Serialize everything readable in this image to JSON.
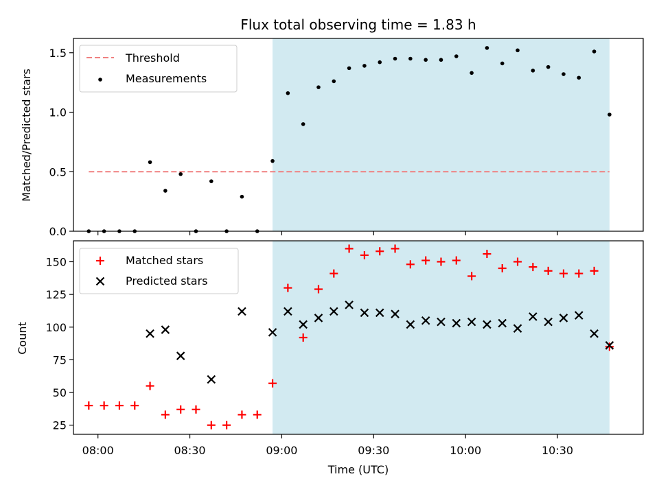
{
  "title": "Flux total observing time = 1.83 h",
  "xlabel": "Time (UTC)",
  "xticks": [
    {
      "t": 480,
      "label": "08:00"
    },
    {
      "t": 510,
      "label": "08:30"
    },
    {
      "t": 540,
      "label": "09:00"
    },
    {
      "t": 570,
      "label": "09:30"
    },
    {
      "t": 600,
      "label": "10:00"
    },
    {
      "t": 630,
      "label": "10:30"
    }
  ],
  "colors": {
    "threshold": "#f08080",
    "measurement": "#000000",
    "matched": "#ff0000",
    "predicted": "#000000",
    "shade": "#add8e6"
  },
  "chart_data": [
    {
      "type": "scatter",
      "ylabel": "Matched/Predicted stars",
      "xlim": [
        "07:52",
        "10:58"
      ],
      "ylim": [
        0,
        1.62
      ],
      "yticks": [
        {
          "v": 0,
          "label": "0.0"
        },
        {
          "v": 0.5,
          "label": "0.5"
        },
        {
          "v": 1.0,
          "label": "1.0"
        },
        {
          "v": 1.5,
          "label": "1.5"
        }
      ],
      "shaded_interval": [
        "08:57",
        "10:47"
      ],
      "legend_position": "top-left",
      "threshold": {
        "name": "Threshold",
        "y": 0.5,
        "x_range": [
          "07:57",
          "10:47"
        ]
      },
      "series": [
        {
          "name": "Measurements",
          "x": [
            "07:57",
            "08:02",
            "08:07",
            "08:12",
            "08:17",
            "08:22",
            "08:27",
            "08:32",
            "08:37",
            "08:42",
            "08:47",
            "08:52",
            "08:57",
            "09:02",
            "09:07",
            "09:12",
            "09:17",
            "09:22",
            "09:27",
            "09:32",
            "09:37",
            "09:42",
            "09:47",
            "09:52",
            "09:57",
            "10:02",
            "10:07",
            "10:12",
            "10:17",
            "10:22",
            "10:27",
            "10:32",
            "10:37",
            "10:42",
            "10:47"
          ],
          "y": [
            0,
            0,
            0,
            0,
            0.58,
            0.34,
            0.48,
            0,
            0.42,
            0,
            0.29,
            0,
            0.59,
            1.16,
            0.9,
            1.21,
            1.26,
            1.37,
            1.39,
            1.42,
            1.45,
            1.45,
            1.44,
            1.44,
            1.47,
            1.33,
            1.54,
            1.41,
            1.52,
            1.35,
            1.38,
            1.32,
            1.29,
            1.51,
            0.98
          ]
        }
      ]
    },
    {
      "type": "scatter",
      "ylabel": "Count",
      "xlim": [
        "07:52",
        "10:58"
      ],
      "ylim": [
        18,
        166
      ],
      "yticks": [
        {
          "v": 25,
          "label": "25"
        },
        {
          "v": 50,
          "label": "50"
        },
        {
          "v": 75,
          "label": "75"
        },
        {
          "v": 100,
          "label": "100"
        },
        {
          "v": 125,
          "label": "125"
        },
        {
          "v": 150,
          "label": "150"
        }
      ],
      "shaded_interval": [
        "08:57",
        "10:47"
      ],
      "legend_position": "top-left",
      "series": [
        {
          "name": "Matched stars",
          "marker": "plus",
          "x": [
            "07:57",
            "08:02",
            "08:07",
            "08:12",
            "08:17",
            "08:22",
            "08:27",
            "08:32",
            "08:37",
            "08:42",
            "08:47",
            "08:52",
            "08:57",
            "09:02",
            "09:07",
            "09:12",
            "09:17",
            "09:22",
            "09:27",
            "09:32",
            "09:37",
            "09:42",
            "09:47",
            "09:52",
            "09:57",
            "10:02",
            "10:07",
            "10:12",
            "10:17",
            "10:22",
            "10:27",
            "10:32",
            "10:37",
            "10:42",
            "10:47"
          ],
          "y": [
            40,
            40,
            40,
            40,
            55,
            33,
            37,
            37,
            25,
            25,
            33,
            33,
            57,
            130,
            92,
            129,
            141,
            160,
            155,
            158,
            160,
            148,
            151,
            150,
            151,
            139,
            156,
            145,
            150,
            146,
            143,
            141,
            141,
            143,
            85
          ]
        },
        {
          "name": "Predicted stars",
          "marker": "x",
          "x": [
            "08:17",
            "08:22",
            "08:27",
            "08:37",
            "08:47",
            "08:57",
            "09:02",
            "09:07",
            "09:12",
            "09:17",
            "09:22",
            "09:27",
            "09:32",
            "09:37",
            "09:42",
            "09:47",
            "09:52",
            "09:57",
            "10:02",
            "10:07",
            "10:12",
            "10:17",
            "10:22",
            "10:27",
            "10:32",
            "10:37",
            "10:42",
            "10:47"
          ],
          "y": [
            95,
            98,
            78,
            60,
            112,
            96,
            112,
            102,
            107,
            112,
            117,
            111,
            111,
            110,
            102,
            105,
            104,
            103,
            104,
            102,
            103,
            99,
            108,
            104,
            107,
            109,
            95,
            86
          ]
        }
      ]
    }
  ]
}
